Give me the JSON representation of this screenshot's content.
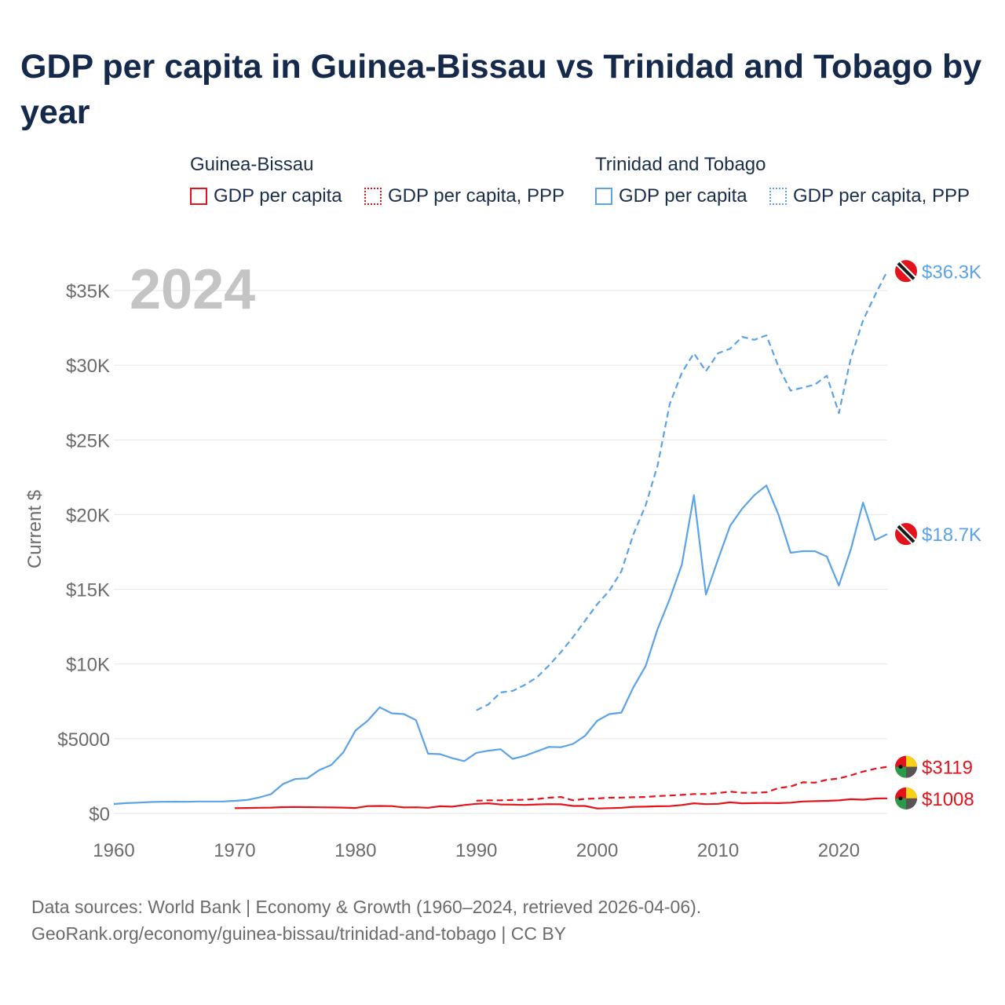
{
  "title": "GDP per capita in Guinea-Bissau vs Trinidad and Tobago by year",
  "legend": {
    "groups": [
      {
        "country": "Guinea-Bissau",
        "items": [
          "GDP per capita",
          "GDP per capita, PPP"
        ],
        "color": "#e3131b"
      },
      {
        "country": "Trinidad and Tobago",
        "items": [
          "GDP per capita",
          "GDP per capita, PPP"
        ],
        "color": "#5ba3e6"
      }
    ]
  },
  "year_label": "2024",
  "footer": {
    "line1": "Data sources: World Bank | Economy & Growth (1960–2024, retrieved 2026-04-06).",
    "line2": "GeoRank.org/economy/guinea-bissau/trinidad-and-tobago | CC BY"
  },
  "chart_data": {
    "type": "line",
    "title": "GDP per capita in Guinea-Bissau vs Trinidad and Tobago by year",
    "xlabel": "",
    "ylabel": "Current $",
    "xlim": [
      1960,
      2024
    ],
    "ylim": [
      0,
      37000
    ],
    "x_ticks": [
      1960,
      1970,
      1980,
      1990,
      2000,
      2010,
      2020
    ],
    "y_ticks": [
      0,
      5000,
      10000,
      15000,
      20000,
      25000,
      30000,
      35000
    ],
    "y_tick_labels": [
      "$0",
      "$5000",
      "$10K",
      "$15K",
      "$20K",
      "$25K",
      "$30K",
      "$35K"
    ],
    "grid": true,
    "series": [
      {
        "name": "Trinidad and Tobago GDP per capita, PPP",
        "color": "#5ba3e6",
        "dash": true,
        "end_label": "$36.3K",
        "x": [
          1990,
          1991,
          1992,
          1993,
          1994,
          1995,
          1996,
          1997,
          1998,
          1999,
          2000,
          2001,
          2002,
          2003,
          2004,
          2005,
          2006,
          2007,
          2008,
          2009,
          2010,
          2011,
          2012,
          2013,
          2014,
          2015,
          2016,
          2017,
          2018,
          2019,
          2020,
          2021,
          2022,
          2023,
          2024
        ],
        "values": [
          6900,
          7300,
          8100,
          8200,
          8600,
          9100,
          9900,
          10800,
          11800,
          12900,
          14000,
          14900,
          16200,
          18700,
          20600,
          23300,
          27400,
          29500,
          30800,
          29600,
          30800,
          31100,
          31900,
          31700,
          32000,
          29900,
          28300,
          28500,
          28700,
          29300,
          26800,
          30500,
          33000,
          34700,
          36300
        ]
      },
      {
        "name": "Trinidad and Tobago GDP per capita",
        "color": "#5ba3e6",
        "dash": false,
        "end_label": "$18.7K",
        "x": [
          1960,
          1961,
          1962,
          1963,
          1964,
          1965,
          1966,
          1967,
          1968,
          1969,
          1970,
          1971,
          1972,
          1973,
          1974,
          1975,
          1976,
          1977,
          1978,
          1979,
          1980,
          1981,
          1982,
          1983,
          1984,
          1985,
          1986,
          1987,
          1988,
          1989,
          1990,
          1991,
          1992,
          1993,
          1994,
          1995,
          1996,
          1997,
          1998,
          1999,
          2000,
          2001,
          2002,
          2003,
          2004,
          2005,
          2006,
          2007,
          2008,
          2009,
          2010,
          2011,
          2012,
          2013,
          2014,
          2015,
          2016,
          2017,
          2018,
          2019,
          2020,
          2021,
          2022,
          2023,
          2024
        ],
        "values": [
          630,
          690,
          720,
          760,
          780,
          790,
          780,
          800,
          800,
          800,
          840,
          900,
          1060,
          1290,
          1970,
          2300,
          2350,
          2900,
          3250,
          4100,
          5550,
          6200,
          7100,
          6700,
          6650,
          6250,
          4000,
          3970,
          3700,
          3500,
          4050,
          4200,
          4300,
          3650,
          3850,
          4150,
          4450,
          4430,
          4650,
          5200,
          6200,
          6650,
          6750,
          8450,
          9850,
          12350,
          14350,
          16650,
          21300,
          14650,
          17000,
          19250,
          20400,
          21300,
          21950,
          20000,
          17450,
          17550,
          17550,
          17200,
          15250,
          17700,
          20800,
          18300,
          18700
        ]
      },
      {
        "name": "Guinea-Bissau GDP per capita, PPP",
        "color": "#e3131b",
        "dash": true,
        "end_label": "$3119",
        "x": [
          1990,
          1991,
          1992,
          1993,
          1994,
          1995,
          1996,
          1997,
          1998,
          1999,
          2000,
          2001,
          2002,
          2003,
          2004,
          2005,
          2006,
          2007,
          2008,
          2009,
          2010,
          2011,
          2012,
          2013,
          2014,
          2015,
          2016,
          2017,
          2018,
          2019,
          2020,
          2021,
          2022,
          2023,
          2024
        ],
        "values": [
          850,
          880,
          880,
          900,
          920,
          960,
          1050,
          1100,
          880,
          980,
          1000,
          1050,
          1060,
          1080,
          1100,
          1160,
          1200,
          1240,
          1300,
          1300,
          1360,
          1460,
          1380,
          1380,
          1420,
          1700,
          1800,
          2080,
          2060,
          2250,
          2340,
          2550,
          2800,
          2990,
          3119
        ]
      },
      {
        "name": "Guinea-Bissau GDP per capita",
        "color": "#e3131b",
        "dash": false,
        "end_label": "$1008",
        "x": [
          1970,
          1971,
          1972,
          1973,
          1974,
          1975,
          1976,
          1977,
          1978,
          1979,
          1980,
          1981,
          1982,
          1983,
          1984,
          1985,
          1986,
          1987,
          1988,
          1989,
          1990,
          1991,
          1992,
          1993,
          1994,
          1995,
          1996,
          1997,
          1998,
          1999,
          2000,
          2001,
          2002,
          2003,
          2004,
          2005,
          2006,
          2007,
          2008,
          2009,
          2010,
          2011,
          2012,
          2013,
          2014,
          2015,
          2016,
          2017,
          2018,
          2019,
          2020,
          2021,
          2022,
          2023,
          2024
        ],
        "values": [
          350,
          360,
          380,
          390,
          420,
          430,
          420,
          410,
          400,
          390,
          360,
          490,
          500,
          490,
          400,
          410,
          380,
          480,
          450,
          560,
          640,
          680,
          600,
          590,
          570,
          600,
          620,
          610,
          500,
          500,
          330,
          350,
          380,
          440,
          450,
          480,
          490,
          560,
          680,
          620,
          640,
          740,
          680,
          690,
          700,
          690,
          720,
          800,
          820,
          840,
          870,
          950,
          920,
          1000,
          1008
        ]
      }
    ]
  }
}
